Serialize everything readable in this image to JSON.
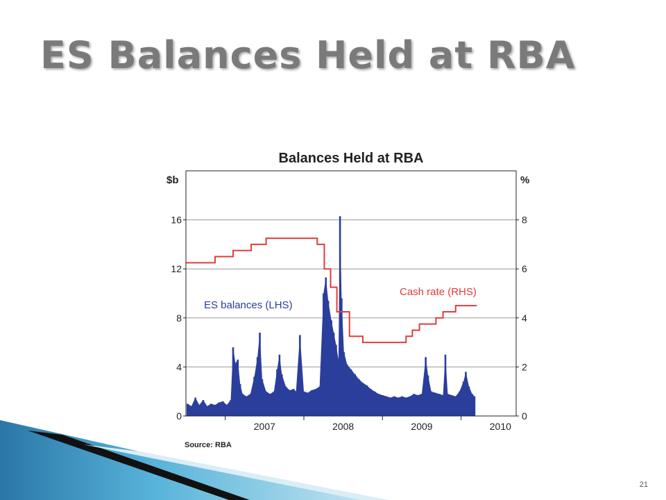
{
  "slide": {
    "title": "ES Balances Held at RBA",
    "page_number": "21"
  },
  "colors": {
    "es_balances": "#2b3e9c",
    "cash_rate": "#e23b3b",
    "gridline": "#999999",
    "title_gray": "#7a7a7a",
    "deco_blue": "#3b9ac9"
  },
  "chart_data": {
    "type": "bar",
    "title": "Balances Held at RBA",
    "left_unit": "$b",
    "right_unit": "%",
    "source": "Source: RBA",
    "y_left": {
      "ticks": [
        "0",
        "4",
        "8",
        "12",
        "16"
      ],
      "range": [
        0,
        20
      ]
    },
    "y_right": {
      "ticks": [
        "0",
        "2",
        "4",
        "6",
        "8"
      ],
      "range": [
        0,
        10
      ]
    },
    "x": {
      "ticks": [
        "2007",
        "2008",
        "2009",
        "2010"
      ],
      "range": [
        2006.5,
        2010.7
      ]
    },
    "grid": true,
    "series": [
      {
        "name": "ES balances (LHS)",
        "axis": "left",
        "type": "bar",
        "points": [
          [
            2006.52,
            1.0
          ],
          [
            2006.57,
            0.8
          ],
          [
            2006.62,
            1.5
          ],
          [
            2006.67,
            0.9
          ],
          [
            2006.72,
            1.3
          ],
          [
            2006.77,
            0.8
          ],
          [
            2006.82,
            1.0
          ],
          [
            2006.87,
            0.9
          ],
          [
            2006.92,
            1.1
          ],
          [
            2006.97,
            1.2
          ],
          [
            2007.02,
            0.9
          ],
          [
            2007.07,
            1.3
          ],
          [
            2007.1,
            5.6
          ],
          [
            2007.13,
            4.3
          ],
          [
            2007.16,
            4.6
          ],
          [
            2007.19,
            2.6
          ],
          [
            2007.22,
            1.8
          ],
          [
            2007.27,
            1.6
          ],
          [
            2007.32,
            1.8
          ],
          [
            2007.37,
            3.2
          ],
          [
            2007.41,
            4.8
          ],
          [
            2007.44,
            6.8
          ],
          [
            2007.47,
            3.0
          ],
          [
            2007.52,
            2.0
          ],
          [
            2007.57,
            1.8
          ],
          [
            2007.62,
            2.0
          ],
          [
            2007.66,
            3.8
          ],
          [
            2007.69,
            5.0
          ],
          [
            2007.72,
            3.4
          ],
          [
            2007.77,
            2.4
          ],
          [
            2007.82,
            2.1
          ],
          [
            2007.87,
            2.2
          ],
          [
            2007.9,
            2.0
          ],
          [
            2007.95,
            6.6
          ],
          [
            2008.0,
            2.0
          ],
          [
            2008.05,
            1.9
          ],
          [
            2008.1,
            2.1
          ],
          [
            2008.15,
            2.2
          ],
          [
            2008.2,
            2.4
          ],
          [
            2008.25,
            10.0
          ],
          [
            2008.28,
            11.3
          ],
          [
            2008.31,
            9.4
          ],
          [
            2008.35,
            7.8
          ],
          [
            2008.38,
            6.8
          ],
          [
            2008.41,
            5.8
          ],
          [
            2008.44,
            4.6
          ],
          [
            2008.46,
            16.3
          ],
          [
            2008.48,
            9.6
          ],
          [
            2008.51,
            5.2
          ],
          [
            2008.55,
            4.2
          ],
          [
            2008.6,
            3.8
          ],
          [
            2008.65,
            3.4
          ],
          [
            2008.7,
            3.0
          ],
          [
            2008.75,
            2.7
          ],
          [
            2008.8,
            2.5
          ],
          [
            2008.85,
            2.2
          ],
          [
            2008.9,
            2.0
          ],
          [
            2008.95,
            1.8
          ],
          [
            2009.0,
            1.7
          ],
          [
            2009.05,
            1.6
          ],
          [
            2009.1,
            1.5
          ],
          [
            2009.15,
            1.6
          ],
          [
            2009.2,
            1.5
          ],
          [
            2009.25,
            1.6
          ],
          [
            2009.3,
            1.5
          ],
          [
            2009.35,
            1.6
          ],
          [
            2009.4,
            1.8
          ],
          [
            2009.45,
            1.7
          ],
          [
            2009.5,
            1.8
          ],
          [
            2009.55,
            4.8
          ],
          [
            2009.58,
            3.3
          ],
          [
            2009.62,
            2.0
          ],
          [
            2009.67,
            1.9
          ],
          [
            2009.72,
            1.8
          ],
          [
            2009.77,
            1.7
          ],
          [
            2009.8,
            5.0
          ],
          [
            2009.83,
            1.8
          ],
          [
            2009.88,
            1.7
          ],
          [
            2009.93,
            1.6
          ],
          [
            2009.98,
            2.0
          ],
          [
            2010.03,
            2.8
          ],
          [
            2010.06,
            3.6
          ],
          [
            2010.1,
            2.4
          ],
          [
            2010.14,
            1.8
          ],
          [
            2010.17,
            1.6
          ]
        ]
      },
      {
        "name": "Cash rate (RHS)",
        "axis": "right",
        "type": "step",
        "points": [
          [
            2006.5,
            6.25
          ],
          [
            2006.87,
            6.25
          ],
          [
            2006.87,
            6.5
          ],
          [
            2007.1,
            6.5
          ],
          [
            2007.1,
            6.75
          ],
          [
            2007.33,
            6.75
          ],
          [
            2007.33,
            7.0
          ],
          [
            2007.52,
            7.0
          ],
          [
            2007.52,
            7.25
          ],
          [
            2008.17,
            7.25
          ],
          [
            2008.17,
            7.0
          ],
          [
            2008.26,
            7.0
          ],
          [
            2008.26,
            6.0
          ],
          [
            2008.34,
            6.0
          ],
          [
            2008.34,
            5.25
          ],
          [
            2008.42,
            5.25
          ],
          [
            2008.42,
            4.25
          ],
          [
            2008.58,
            4.25
          ],
          [
            2008.58,
            3.25
          ],
          [
            2008.75,
            3.25
          ],
          [
            2008.75,
            3.0
          ],
          [
            2009.3,
            3.0
          ],
          [
            2009.3,
            3.25
          ],
          [
            2009.38,
            3.25
          ],
          [
            2009.38,
            3.5
          ],
          [
            2009.47,
            3.5
          ],
          [
            2009.47,
            3.75
          ],
          [
            2009.68,
            3.75
          ],
          [
            2009.68,
            4.0
          ],
          [
            2009.77,
            4.0
          ],
          [
            2009.77,
            4.25
          ],
          [
            2009.93,
            4.25
          ],
          [
            2009.93,
            4.5
          ],
          [
            2010.2,
            4.5
          ]
        ]
      }
    ]
  }
}
